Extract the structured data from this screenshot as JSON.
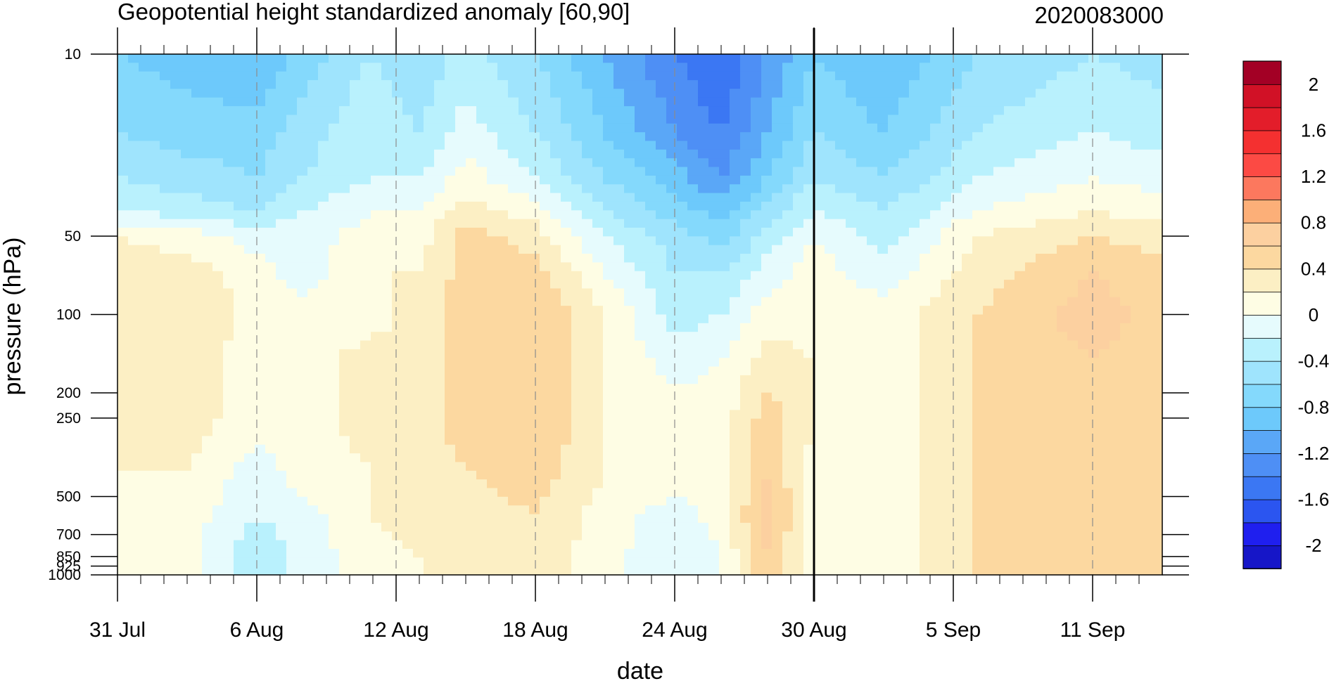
{
  "chart_data": {
    "type": "heatmap",
    "title": "Geopotential height standardized anomaly [60,90]",
    "date_label": "2020083000",
    "xlabel": "date",
    "ylabel": "pressure (hPa)",
    "x_axis": {
      "start": "31 Jul",
      "end": "15 Sep",
      "tick_labels": [
        "31 Jul",
        "6 Aug",
        "12 Aug",
        "18 Aug",
        "24 Aug",
        "30 Aug",
        "5 Sep",
        "11 Sep"
      ],
      "tick_days": [
        0,
        6,
        12,
        18,
        24,
        30,
        36,
        42
      ],
      "minor_tick_days": 1,
      "dashed_gridlines_at_labels": true,
      "current_date_marker": "30 Aug"
    },
    "y_axis": {
      "scale": "log",
      "reversed": true,
      "range": [
        1000,
        10
      ],
      "tick_labels": [
        "10",
        "50",
        "100",
        "200",
        "250",
        "500",
        "700",
        "850",
        "925",
        "1000"
      ],
      "tick_values": [
        10,
        50,
        100,
        200,
        250,
        500,
        700,
        850,
        925,
        1000
      ]
    },
    "levels": [
      -2.2,
      -2,
      -1.8,
      -1.6,
      -1.4,
      -1.2,
      -1,
      -0.8,
      -0.6,
      -0.4,
      -0.2,
      0,
      0.2,
      0.4,
      0.6,
      0.8,
      1,
      1.2,
      1.4,
      1.6,
      1.8,
      2,
      2.2
    ],
    "colorbar": {
      "labels": [
        "2",
        "1.6",
        "1.2",
        "0.8",
        "0.4",
        "0",
        "-0.4",
        "-0.8",
        "-1.2",
        "-1.6",
        "-2"
      ],
      "label_values": [
        2,
        1.6,
        1.2,
        0.8,
        0.4,
        0,
        -0.4,
        -0.8,
        -1.2,
        -1.6,
        -2
      ],
      "colors": [
        "#1616c8",
        "#1f1fef",
        "#2b55f0",
        "#3b77f3",
        "#4e8ff5",
        "#5aa7f7",
        "#6dc9fb",
        "#84d9fc",
        "#9fe4fd",
        "#b9f1fd",
        "#e6fbfd",
        "#fefde4",
        "#fcefc4",
        "#fcd8a0",
        "#fcd0a0",
        "#fcaf78",
        "#fc785e",
        "#fc4a44",
        "#f43030",
        "#e31d2a",
        "#d11126",
        "#a30025"
      ]
    },
    "columns": [
      {
        "day": 0,
        "values": [
          -0.8,
          -0.6,
          -0.4,
          -0.2,
          0.2,
          0.3,
          0.3,
          0.3,
          0.3,
          0.2,
          0.1,
          0.2,
          0.2
        ]
      },
      {
        "day": 3,
        "values": [
          -0.9,
          -0.7,
          -0.5,
          -0.3,
          0.1,
          0.3,
          0.4,
          0.3,
          0.3,
          0.2,
          0.1,
          0.1,
          0.1
        ]
      },
      {
        "day": 6,
        "values": [
          -1.0,
          -0.7,
          -0.6,
          -0.4,
          -0.1,
          0.1,
          0.1,
          0.1,
          0.1,
          -0.1,
          -0.2,
          -0.4,
          -0.4
        ]
      },
      {
        "day": 8,
        "values": [
          -0.7,
          -0.5,
          -0.4,
          -0.2,
          -0.1,
          -0.1,
          0.1,
          0.1,
          0.1,
          0.1,
          -0.1,
          -0.1,
          -0.1
        ]
      },
      {
        "day": 11,
        "values": [
          -0.4,
          -0.2,
          -0.2,
          0.0,
          0.1,
          0.2,
          0.1,
          0.3,
          0.3,
          0.2,
          0.2,
          0.1,
          0.1
        ]
      },
      {
        "day": 13,
        "values": [
          -0.6,
          -0.4,
          -0.2,
          0.0,
          0.1,
          0.2,
          0.3,
          0.3,
          0.3,
          0.3,
          0.3,
          0.2,
          0.2
        ]
      },
      {
        "day": 15,
        "values": [
          -0.3,
          -0.1,
          0.1,
          0.3,
          0.5,
          0.5,
          0.5,
          0.5,
          0.5,
          0.4,
          0.3,
          0.3,
          0.3
        ]
      },
      {
        "day": 18,
        "values": [
          -0.6,
          -0.4,
          -0.2,
          0.1,
          0.3,
          0.5,
          0.6,
          0.6,
          0.6,
          0.5,
          0.4,
          0.3,
          0.3
        ]
      },
      {
        "day": 21,
        "values": [
          -1.0,
          -0.8,
          -0.6,
          -0.4,
          -0.2,
          0.0,
          0.2,
          0.2,
          0.2,
          0.2,
          0.1,
          0.1,
          0.1
        ]
      },
      {
        "day": 24,
        "values": [
          -1.4,
          -1.2,
          -0.9,
          -0.7,
          -0.5,
          -0.4,
          -0.3,
          -0.1,
          0.1,
          0.1,
          -0.1,
          -0.2,
          -0.2
        ]
      },
      {
        "day": 26,
        "values": [
          -1.6,
          -1.4,
          -1.2,
          -0.9,
          -0.7,
          -0.4,
          -0.2,
          0.0,
          0.1,
          0.1,
          0.1,
          0.0,
          0.0
        ]
      },
      {
        "day": 28,
        "values": [
          -1.2,
          -1.0,
          -0.8,
          -0.5,
          -0.3,
          -0.1,
          0.1,
          0.3,
          0.5,
          0.6,
          0.7,
          0.6,
          0.6
        ]
      },
      {
        "day": 30,
        "values": [
          -0.8,
          -0.6,
          -0.4,
          -0.2,
          0.0,
          0.1,
          0.1,
          0.2,
          0.2,
          0.1,
          0.1,
          0.0,
          0.0
        ]
      },
      {
        "day": 33,
        "values": [
          -1.0,
          -0.8,
          -0.6,
          -0.4,
          -0.3,
          -0.1,
          0.1,
          0.1,
          0.1,
          0.1,
          0.1,
          0.1,
          0.1
        ]
      },
      {
        "day": 37,
        "values": [
          -0.6,
          -0.4,
          -0.2,
          0.0,
          0.2,
          0.3,
          0.4,
          0.4,
          0.4,
          0.4,
          0.4,
          0.4,
          0.4
        ]
      },
      {
        "day": 42,
        "values": [
          -0.4,
          -0.2,
          0.0,
          0.2,
          0.4,
          0.6,
          0.7,
          0.6,
          0.5,
          0.5,
          0.5,
          0.5,
          0.5
        ]
      },
      {
        "day": 45,
        "values": [
          -0.5,
          -0.3,
          -0.1,
          0.1,
          0.3,
          0.5,
          0.5,
          0.5,
          0.5,
          0.5,
          0.5,
          0.5,
          0.5
        ]
      }
    ],
    "pressure_levels": [
      10,
      20,
      30,
      40,
      50,
      70,
      100,
      150,
      250,
      400,
      600,
      850,
      1000
    ]
  }
}
